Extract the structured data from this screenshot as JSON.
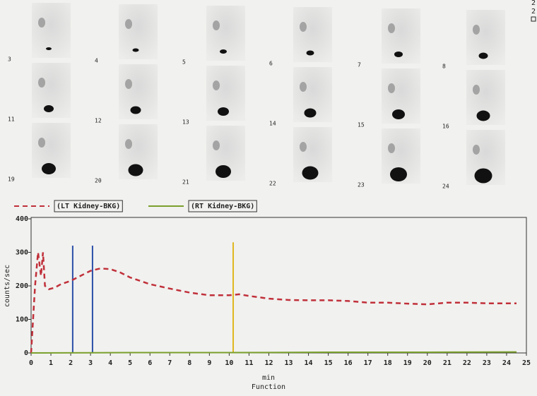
{
  "frames": {
    "labels": [
      "3",
      "4",
      "5",
      "6",
      "7",
      "8",
      "11",
      "12",
      "13",
      "14",
      "15",
      "16",
      "19",
      "20",
      "21",
      "22",
      "23",
      "24"
    ],
    "corner_marks": [
      "2",
      "2"
    ]
  },
  "chart_data": {
    "type": "line",
    "xlabel": "min",
    "subtitle": "Function",
    "ylabel": "counts/sec",
    "xlim": [
      0,
      25
    ],
    "ylim": [
      0,
      400
    ],
    "xticks": [
      0,
      1,
      2,
      3,
      4,
      5,
      6,
      7,
      8,
      9,
      10,
      11,
      12,
      13,
      14,
      15,
      16,
      17,
      18,
      19,
      20,
      21,
      22,
      23,
      24,
      25
    ],
    "yticks": [
      0,
      100,
      200,
      300,
      400
    ],
    "series": [
      {
        "name": "(LT Kidney-BKG)",
        "color": "#c0303a",
        "dash": true,
        "x": [
          0,
          0.2,
          0.35,
          0.5,
          0.6,
          0.7,
          0.9,
          1.2,
          1.5,
          2,
          2.5,
          3,
          3.5,
          4,
          4.5,
          5,
          6,
          7,
          8,
          9,
          10,
          10.5,
          11,
          12,
          13,
          14,
          15,
          16,
          17,
          18,
          19,
          20,
          21,
          22,
          23,
          24,
          24.5
        ],
        "values": [
          0,
          200,
          300,
          230,
          300,
          200,
          190,
          195,
          205,
          215,
          230,
          245,
          252,
          250,
          240,
          225,
          205,
          192,
          180,
          172,
          172,
          175,
          170,
          162,
          158,
          157,
          157,
          155,
          150,
          150,
          147,
          145,
          150,
          150,
          148,
          148,
          148
        ]
      },
      {
        "name": "(RT Kidney-BKG)",
        "color": "#7aa02c",
        "dash": false,
        "x": [
          0,
          5,
          10,
          15,
          20,
          24.5
        ],
        "values": [
          0,
          1,
          1,
          2,
          2,
          3
        ]
      }
    ],
    "markers": [
      {
        "x": 2.1,
        "top": 320,
        "color": "#2b4fa8"
      },
      {
        "x": 3.1,
        "top": 320,
        "color": "#2b4fa8"
      },
      {
        "x": 10.2,
        "top": 330,
        "color": "#e0b820"
      }
    ]
  }
}
